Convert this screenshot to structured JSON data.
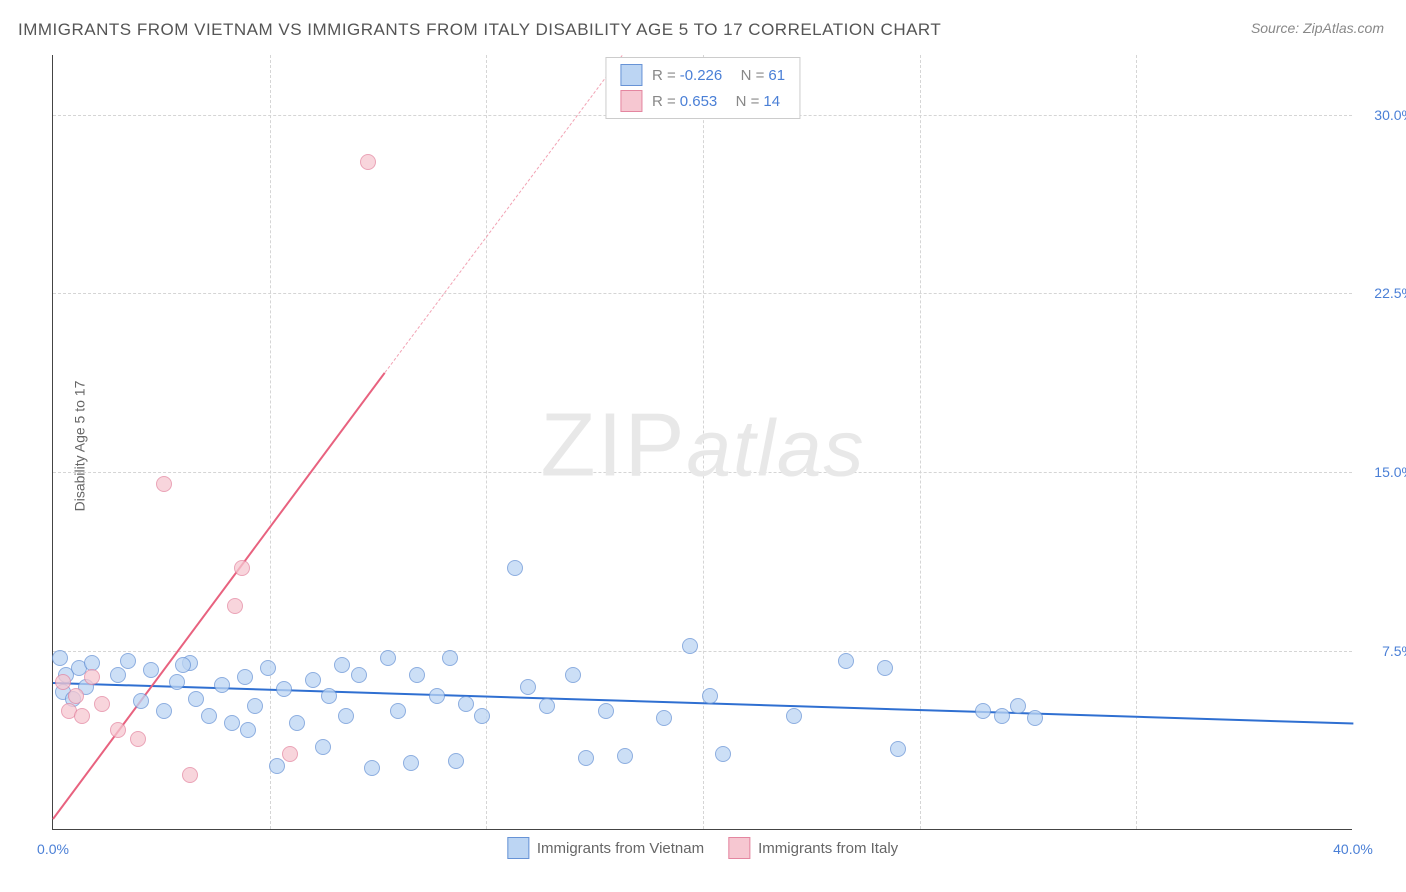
{
  "title": "IMMIGRANTS FROM VIETNAM VS IMMIGRANTS FROM ITALY DISABILITY AGE 5 TO 17 CORRELATION CHART",
  "source": "Source: ZipAtlas.com",
  "watermark_a": "ZIP",
  "watermark_b": "atlas",
  "ylabel": "Disability Age 5 to 17",
  "chart": {
    "type": "scatter-correlation",
    "xlim": [
      0,
      40
    ],
    "ylim": [
      0,
      32.5
    ],
    "background_color": "#ffffff",
    "grid_color": "#d5d5d5",
    "axis_color": "#444444",
    "tick_color": "#4a7fd6",
    "tick_fontsize": 14,
    "title_color": "#555555",
    "title_fontsize": 17,
    "ylabel_color": "#666666",
    "ylabel_fontsize": 14,
    "yticks": [
      {
        "v": 7.5,
        "l": "7.5%"
      },
      {
        "v": 15,
        "l": "15.0%"
      },
      {
        "v": 22.5,
        "l": "22.5%"
      },
      {
        "v": 30,
        "l": "30.0%"
      }
    ],
    "xticks": [
      {
        "v": 0,
        "l": "0.0%"
      },
      {
        "v": 40,
        "l": "40.0%"
      }
    ],
    "xgrid": [
      6.67,
      13.33,
      20,
      26.67,
      33.33
    ],
    "marker_size": 16,
    "series": [
      {
        "name": "Immigrants from Vietnam",
        "fill": "#bcd5f3",
        "stroke": "#6793d6",
        "fill_opacity": 0.75,
        "R": "-0.226",
        "N": "61",
        "trend": {
          "x1": 0,
          "y1": 6.2,
          "x2": 40,
          "y2": 4.5,
          "color": "#2f6fd1",
          "width": 2,
          "dash": "solid"
        },
        "points": [
          [
            0.2,
            7.2
          ],
          [
            0.3,
            5.8
          ],
          [
            0.4,
            6.5
          ],
          [
            0.6,
            5.5
          ],
          [
            0.8,
            6.8
          ],
          [
            1.0,
            6.0
          ],
          [
            1.2,
            7.0
          ],
          [
            2.0,
            6.5
          ],
          [
            2.3,
            7.1
          ],
          [
            2.7,
            5.4
          ],
          [
            3.0,
            6.7
          ],
          [
            3.4,
            5.0
          ],
          [
            3.8,
            6.2
          ],
          [
            4.2,
            7.0
          ],
          [
            4.4,
            5.5
          ],
          [
            4.8,
            4.8
          ],
          [
            5.2,
            6.1
          ],
          [
            5.5,
            4.5
          ],
          [
            5.9,
            6.4
          ],
          [
            6.2,
            5.2
          ],
          [
            6.6,
            6.8
          ],
          [
            6.9,
            2.7
          ],
          [
            7.1,
            5.9
          ],
          [
            7.5,
            4.5
          ],
          [
            8.0,
            6.3
          ],
          [
            8.3,
            3.5
          ],
          [
            8.5,
            5.6
          ],
          [
            9.0,
            4.8
          ],
          [
            9.4,
            6.5
          ],
          [
            9.8,
            2.6
          ],
          [
            10.3,
            7.2
          ],
          [
            10.6,
            5.0
          ],
          [
            11.0,
            2.8
          ],
          [
            11.2,
            6.5
          ],
          [
            11.8,
            5.6
          ],
          [
            12.4,
            2.9
          ],
          [
            12.7,
            5.3
          ],
          [
            13.2,
            4.8
          ],
          [
            14.2,
            11.0
          ],
          [
            14.6,
            6.0
          ],
          [
            15.2,
            5.2
          ],
          [
            16.0,
            6.5
          ],
          [
            16.4,
            3.0
          ],
          [
            17.0,
            5.0
          ],
          [
            17.6,
            3.1
          ],
          [
            18.8,
            4.7
          ],
          [
            19.6,
            7.7
          ],
          [
            20.2,
            5.6
          ],
          [
            20.6,
            3.2
          ],
          [
            22.8,
            4.8
          ],
          [
            24.4,
            7.1
          ],
          [
            25.6,
            6.8
          ],
          [
            26.0,
            3.4
          ],
          [
            28.6,
            5.0
          ],
          [
            29.2,
            4.8
          ],
          [
            29.7,
            5.2
          ],
          [
            30.2,
            4.7
          ],
          [
            12.2,
            7.2
          ],
          [
            8.9,
            6.9
          ],
          [
            6.0,
            4.2
          ],
          [
            4.0,
            6.9
          ]
        ]
      },
      {
        "name": "Immigrants from Italy",
        "fill": "#f6c7d1",
        "stroke": "#e486a0",
        "fill_opacity": 0.75,
        "R": "0.653",
        "N": "14",
        "trend": {
          "x1": 0,
          "y1": 0.5,
          "x2": 10.2,
          "y2": 19.2,
          "color": "#e8627f",
          "width": 2,
          "dash": "solid"
        },
        "trend_ext": {
          "x1": 10.2,
          "y1": 19.2,
          "x2": 17.5,
          "y2": 32.5,
          "color": "#f2a3b4",
          "width": 1,
          "dash": "dashed"
        },
        "points": [
          [
            0.3,
            6.2
          ],
          [
            0.5,
            5.0
          ],
          [
            0.7,
            5.6
          ],
          [
            0.9,
            4.8
          ],
          [
            1.2,
            6.4
          ],
          [
            1.5,
            5.3
          ],
          [
            2.0,
            4.2
          ],
          [
            2.6,
            3.8
          ],
          [
            3.4,
            14.5
          ],
          [
            4.2,
            2.3
          ],
          [
            5.6,
            9.4
          ],
          [
            5.8,
            11.0
          ],
          [
            7.3,
            3.2
          ],
          [
            9.7,
            28.0
          ]
        ]
      }
    ]
  }
}
